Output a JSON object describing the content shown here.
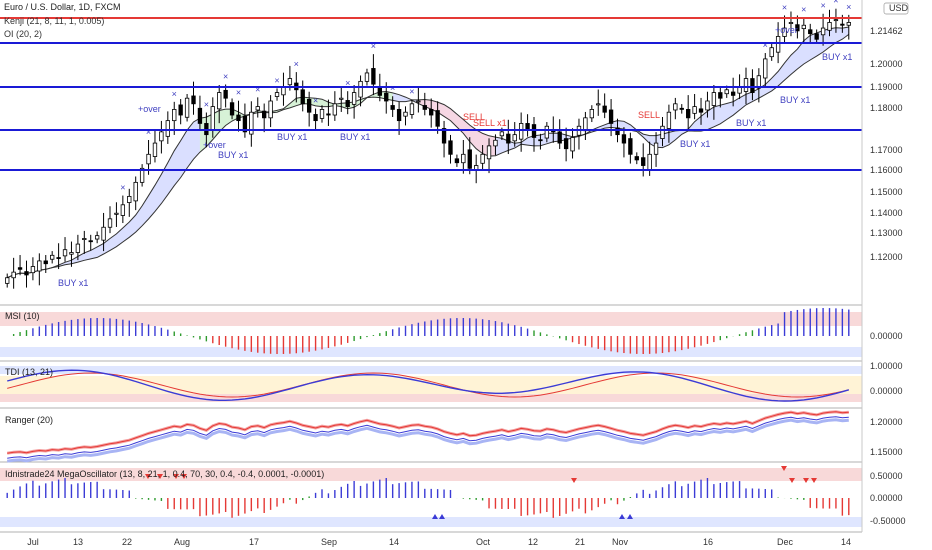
{
  "header": {
    "title": "Euro / U.S. Dollar, 1D, FXCM",
    "line2": "Kenji (21, 8, 11, 1, 0.005)",
    "line3": "OI (20, 2)"
  },
  "colors": {
    "level_line": "#1a1ad6",
    "red_level": "#e53935",
    "price_badge": "#1a1ad6",
    "red_badge": "#e53935",
    "candle": "#000000",
    "band_fill": "#d6dcff",
    "band_up_fill": "#d7f2d7",
    "band_dn_fill": "#f6d7e4",
    "osc_blue": "#3b3bd6",
    "osc_red": "#e53935",
    "osc_green": "#2e9b2e",
    "pink_zone": "#f8d9d9",
    "blue_zone": "#dfe6ff"
  },
  "price_axis": {
    "currency": "USD",
    "ticks": [
      "1.20000",
      "1.19000",
      "1.18000",
      "1.17000",
      "1.16000",
      "1.15000",
      "1.14000",
      "1.13000",
      "1.12000"
    ],
    "current_tick": "1.21462"
  },
  "levels": [
    {
      "label": "1.21651",
      "color": "red"
    },
    {
      "label": "1.20791",
      "color": "blue"
    },
    {
      "label": "1.19180",
      "color": "blue"
    },
    {
      "label": "1.17659",
      "color": "blue"
    },
    {
      "label": "1.16196",
      "color": "blue"
    }
  ],
  "annotations": {
    "buy_labels": [
      "BUY x1",
      "BUY x1",
      "BUY x1",
      "BUY x1",
      "BUY x1",
      "BUY x1",
      "BUY x1",
      "BUY x1"
    ],
    "sell_labels": [
      "SELL",
      "SELL",
      "SELL x1"
    ],
    "over_labels": [
      "+over",
      "+over",
      "+over"
    ]
  },
  "x_axis": {
    "labels": [
      "Jul",
      "13",
      "22",
      "Aug",
      "17",
      "Sep",
      "14",
      "Oct",
      "12",
      "21",
      "Nov",
      "16",
      "Dec",
      "14"
    ]
  },
  "panels": {
    "msi": {
      "label": "MSI (10)",
      "ticks": [
        "0.00000"
      ]
    },
    "tdi": {
      "label": "TDI (13, 21)",
      "ticks": [
        "1.00000",
        "0.00000"
      ]
    },
    "ranger": {
      "label": "Ranger (20)",
      "ticks": [
        "1.20000",
        "1.15000"
      ]
    },
    "mega": {
      "label": "Idnistrade24 MegaOscillator (13, 8, 21, 1, 0.4, 70, 30, 0.4, -0.4, 0.0001, -0.0001)",
      "ticks": [
        "0.50000",
        "0.00000",
        "-0.50000"
      ]
    }
  },
  "chart_data": {
    "type": "candlestick",
    "y_range": [
      1.115,
      1.223
    ],
    "closes": [
      1.124,
      1.126,
      1.127,
      1.125,
      1.128,
      1.13,
      1.129,
      1.132,
      1.131,
      1.134,
      1.133,
      1.136,
      1.138,
      1.137,
      1.139,
      1.142,
      1.145,
      1.147,
      1.15,
      1.153,
      1.158,
      1.163,
      1.168,
      1.172,
      1.176,
      1.18,
      1.184,
      1.182,
      1.188,
      1.186,
      1.179,
      1.175,
      1.185,
      1.19,
      1.188,
      1.182,
      1.18,
      1.176,
      1.183,
      1.185,
      1.181,
      1.187,
      1.19,
      1.192,
      1.195,
      1.191,
      1.186,
      1.183,
      1.18,
      1.184,
      1.182,
      1.186,
      1.188,
      1.185,
      1.19,
      1.194,
      1.197,
      1.193,
      1.189,
      1.187,
      1.184,
      1.18,
      1.183,
      1.186,
      1.187,
      1.184,
      1.182,
      1.178,
      1.172,
      1.168,
      1.165,
      1.168,
      1.163,
      1.164,
      1.168,
      1.171,
      1.173,
      1.176,
      1.172,
      1.175,
      1.179,
      1.177,
      1.174,
      1.173,
      1.178,
      1.176,
      1.172,
      1.17,
      1.174,
      1.178,
      1.181,
      1.184,
      1.186,
      1.183,
      1.179,
      1.175,
      1.172,
      1.168,
      1.166,
      1.164,
      1.168,
      1.172,
      1.178,
      1.183,
      1.186,
      1.184,
      1.181,
      1.185,
      1.183,
      1.187,
      1.19,
      1.188,
      1.191,
      1.189,
      1.192,
      1.195,
      1.19,
      1.196,
      1.202,
      1.206,
      1.21,
      1.213,
      1.215,
      1.212,
      1.214,
      1.211,
      1.209,
      1.213,
      1.215,
      1.216,
      1.214,
      1.215
    ],
    "ranges": [
      "1.12000",
      "1.21651"
    ]
  }
}
